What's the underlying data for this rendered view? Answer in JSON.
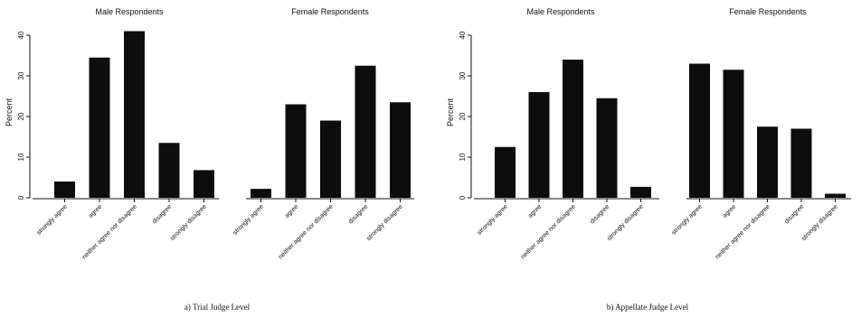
{
  "chart_data": [
    {
      "type": "bar",
      "caption": "a) Trial Judge Level",
      "ylabel": "Percent",
      "ylim": [
        0,
        42
      ],
      "yticks": [
        0,
        10,
        20,
        30,
        40
      ],
      "categories": [
        "strongly agree",
        "agree",
        "neither agree nor disagree",
        "disagree",
        "strongly disagree"
      ],
      "series": [
        {
          "name": "Male Respondents",
          "values": [
            4,
            34.5,
            41,
            13.5,
            6.8
          ]
        },
        {
          "name": "Female Respondents",
          "values": [
            2.2,
            23,
            19,
            32.5,
            23.5
          ]
        }
      ]
    },
    {
      "type": "bar",
      "caption": "b) Appellate Judge Level",
      "ylabel": "Percent",
      "ylim": [
        0,
        42
      ],
      "yticks": [
        0,
        10,
        20,
        30,
        40
      ],
      "categories": [
        "strongly agree",
        "agree",
        "neither agree nor disagree",
        "disagree",
        "strongly disagree"
      ],
      "series": [
        {
          "name": "Male Respondents",
          "values": [
            12.5,
            26,
            34,
            24.5,
            2.7
          ]
        },
        {
          "name": "Female Respondents",
          "values": [
            33,
            31.5,
            17.5,
            17,
            1
          ]
        }
      ]
    }
  ]
}
